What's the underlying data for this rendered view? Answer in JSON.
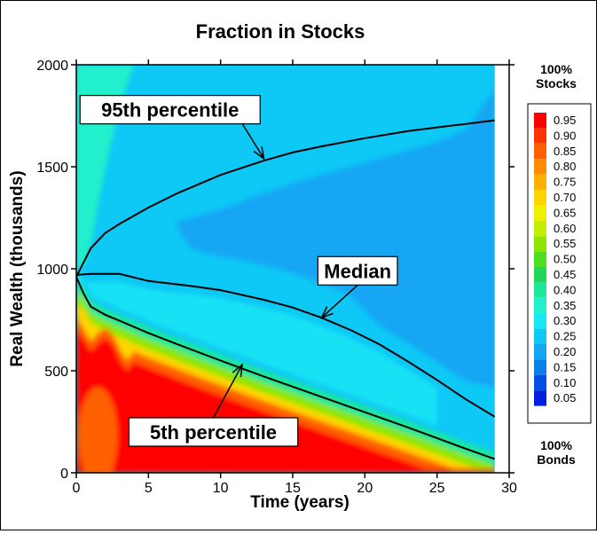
{
  "chart_data": {
    "type": "heatmap",
    "title": "Fraction in Stocks",
    "xlabel": "Time (years)",
    "ylabel": "Real Wealth (thousands)",
    "xlim": [
      0,
      30
    ],
    "ylim": [
      0,
      2000
    ],
    "data_x_max": 29,
    "xticks": [
      0,
      5,
      10,
      15,
      20,
      25,
      30
    ],
    "yticks": [
      0,
      500,
      1000,
      1500,
      2000
    ],
    "color_legend": {
      "top_label": "100%\nStocks",
      "bottom_label": "100%\nBonds",
      "levels": [
        0.95,
        0.9,
        0.85,
        0.8,
        0.75,
        0.7,
        0.65,
        0.6,
        0.55,
        0.5,
        0.45,
        0.4,
        0.35,
        0.3,
        0.25,
        0.2,
        0.15,
        0.1,
        0.05
      ],
      "colors": [
        "#ff0000",
        "#ff3300",
        "#ff6000",
        "#ff8c00",
        "#ffb000",
        "#ffd400",
        "#f0ef00",
        "#c4ef00",
        "#8de600",
        "#4fde22",
        "#22d65a",
        "#1ee898",
        "#20f0cc",
        "#18e6f4",
        "#0ec8f6",
        "#12a6f4",
        "#0a80e8",
        "#0050e6",
        "#0020e0"
      ]
    },
    "regions": {
      "background_fraction": 0.25,
      "upper_left_fraction": 0.35,
      "upper_right_fraction": 0.18,
      "lower_band_fractions": [
        0.4,
        0.55,
        0.7,
        0.85,
        0.95
      ]
    },
    "series": [
      {
        "name": "95th percentile",
        "x": [
          0,
          0.5,
          1,
          2,
          3,
          5,
          7,
          10,
          13,
          15,
          17,
          20,
          23,
          25,
          27,
          29
        ],
        "y": [
          960,
          1030,
          1100,
          1175,
          1220,
          1300,
          1370,
          1460,
          1530,
          1570,
          1600,
          1640,
          1675,
          1693,
          1710,
          1728
        ]
      },
      {
        "name": "Median",
        "x": [
          0,
          1,
          2,
          3,
          5,
          8,
          10,
          13,
          15,
          17,
          19,
          21,
          23,
          25,
          27,
          29
        ],
        "y": [
          970,
          975,
          975,
          975,
          940,
          915,
          895,
          848,
          810,
          760,
          700,
          630,
          545,
          455,
          360,
          275
        ]
      },
      {
        "name": "5th percentile",
        "x": [
          0,
          0.5,
          1,
          2,
          3,
          5,
          7,
          10,
          13,
          15,
          17,
          19,
          21,
          23,
          25,
          27,
          29
        ],
        "y": [
          960,
          880,
          815,
          775,
          745,
          685,
          630,
          550,
          472,
          422,
          372,
          322,
          272,
          222,
          170,
          118,
          68
        ]
      }
    ],
    "annotations": [
      {
        "text": "95th percentile",
        "label_at": [
          6.5,
          1780
        ],
        "arrow_to": [
          13,
          1540
        ]
      },
      {
        "text": "Median",
        "label_at": [
          19.5,
          990
        ],
        "arrow_to": [
          17,
          760
        ]
      },
      {
        "text": "5th percentile",
        "label_at": [
          9.5,
          200
        ],
        "arrow_to": [
          11.5,
          530
        ]
      }
    ]
  }
}
